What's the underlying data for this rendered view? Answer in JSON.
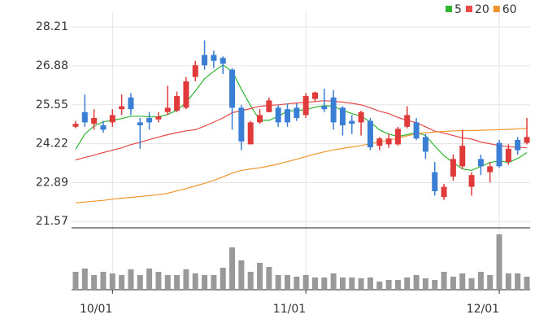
{
  "chart_data": {
    "type": "candlestick",
    "categories": [
      null,
      null,
      null,
      null,
      "10/01",
      null,
      null,
      null,
      null,
      null,
      null,
      null,
      null,
      null,
      null,
      null,
      null,
      null,
      null,
      null,
      null,
      null,
      null,
      null,
      null,
      "11/01",
      null,
      null,
      null,
      null,
      null,
      null,
      null,
      null,
      null,
      null,
      null,
      null,
      null,
      null,
      null,
      null,
      null,
      null,
      null,
      null,
      "12/01",
      null,
      null,
      null
    ],
    "open": [
      24.8,
      25.3,
      24.9,
      24.85,
      24.95,
      25.4,
      25.8,
      24.95,
      25.1,
      25.05,
      25.3,
      25.35,
      25.45,
      26.5,
      27.25,
      27.25,
      27.15,
      26.75,
      25.45,
      24.2,
      24.95,
      25.3,
      25.45,
      25.4,
      25.45,
      25.2,
      25.75,
      25.5,
      25.8,
      25.45,
      25.0,
      24.95,
      25.0,
      24.15,
      24.2,
      24.2,
      24.8,
      24.95,
      24.45,
      23.25,
      22.4,
      23.1,
      23.45,
      22.75,
      23.7,
      23.25,
      24.25,
      23.6,
      24.35,
      24.25
    ],
    "high": [
      25.0,
      25.9,
      25.4,
      25.0,
      25.4,
      25.9,
      25.95,
      25.1,
      25.3,
      25.3,
      26.2,
      26.0,
      26.5,
      27.05,
      27.75,
      27.4,
      27.2,
      26.8,
      25.55,
      25.0,
      25.4,
      25.8,
      25.55,
      25.6,
      25.6,
      25.95,
      26.0,
      26.1,
      26.05,
      25.5,
      25.2,
      25.35,
      25.1,
      24.45,
      24.55,
      24.8,
      25.5,
      25.1,
      24.55,
      23.6,
      22.85,
      23.85,
      24.7,
      23.25,
      23.85,
      23.6,
      24.35,
      24.2,
      24.45,
      25.1
    ],
    "low": [
      24.75,
      24.8,
      24.7,
      24.6,
      24.8,
      25.2,
      25.2,
      24.05,
      24.7,
      24.95,
      25.2,
      25.3,
      25.4,
      26.35,
      26.75,
      26.8,
      26.6,
      24.7,
      24.0,
      24.2,
      24.9,
      25.3,
      24.8,
      24.8,
      25.0,
      25.1,
      25.65,
      25.3,
      24.7,
      24.5,
      24.55,
      24.5,
      24.0,
      24.0,
      24.08,
      24.15,
      24.75,
      24.35,
      23.7,
      22.45,
      22.3,
      22.96,
      23.35,
      22.45,
      23.15,
      22.9,
      23.4,
      23.5,
      23.85,
      24.2
    ],
    "close": [
      24.9,
      24.95,
      25.1,
      24.7,
      25.2,
      25.5,
      25.4,
      24.85,
      24.95,
      25.15,
      25.45,
      25.85,
      26.35,
      26.9,
      26.9,
      27.05,
      26.95,
      25.45,
      24.3,
      24.95,
      25.2,
      25.7,
      24.95,
      24.95,
      25.1,
      25.85,
      25.97,
      25.4,
      24.95,
      24.85,
      24.9,
      25.3,
      24.1,
      24.4,
      24.4,
      24.73,
      25.2,
      24.4,
      23.95,
      22.6,
      22.75,
      23.7,
      24.15,
      23.15,
      23.45,
      23.45,
      23.45,
      24.05,
      24.0,
      24.45
    ],
    "up_color": "#e03a3a",
    "down_color": "#3a7fd5",
    "ylim": [
      21.35,
      28.71
    ],
    "yticks": [
      28.21,
      26.88,
      25.55,
      24.22,
      22.89,
      21.57
    ],
    "grid": true,
    "legend_position": "top-right",
    "series": [
      {
        "name": "5",
        "color": "#2fb52f",
        "values": [
          24.03,
          24.55,
          24.83,
          24.97,
          25.02,
          25.08,
          25.16,
          25.16,
          25.14,
          25.14,
          25.22,
          25.36,
          25.63,
          26.02,
          26.44,
          26.69,
          26.91,
          26.69,
          26.08,
          25.52,
          25.02,
          25.02,
          25.16,
          25.33,
          25.36,
          25.38,
          25.47,
          25.52,
          25.5,
          25.36,
          25.25,
          25.16,
          24.97,
          24.69,
          24.55,
          24.47,
          24.53,
          24.61,
          24.5,
          24.14,
          23.81,
          23.58,
          23.36,
          23.31,
          23.45,
          23.58,
          23.64,
          23.58,
          23.72,
          23.92
        ]
      },
      {
        "name": "20",
        "color": "#e84848",
        "values": [
          23.67,
          23.75,
          23.83,
          23.92,
          24.0,
          24.08,
          24.19,
          24.27,
          24.36,
          24.45,
          24.53,
          24.6,
          24.66,
          24.7,
          24.82,
          24.96,
          25.1,
          25.28,
          25.35,
          25.42,
          25.5,
          25.53,
          25.55,
          25.58,
          25.61,
          25.63,
          25.66,
          25.69,
          25.67,
          25.64,
          25.6,
          25.55,
          25.45,
          25.33,
          25.25,
          25.12,
          25.02,
          24.94,
          24.8,
          24.65,
          24.58,
          24.5,
          24.42,
          24.38,
          24.28,
          24.22,
          24.16,
          24.12,
          24.1,
          24.08
        ]
      },
      {
        "name": "60",
        "color": "#f0952e",
        "values": [
          22.2,
          22.23,
          22.26,
          22.29,
          22.33,
          22.36,
          22.39,
          22.42,
          22.45,
          22.48,
          22.53,
          22.61,
          22.69,
          22.78,
          22.87,
          22.97,
          23.09,
          23.22,
          23.31,
          23.36,
          23.4,
          23.46,
          23.53,
          23.61,
          23.69,
          23.78,
          23.87,
          23.94,
          24.01,
          24.06,
          24.11,
          24.16,
          24.22,
          24.28,
          24.34,
          24.41,
          24.49,
          24.56,
          24.6,
          24.62,
          24.64,
          24.66,
          24.67,
          24.67,
          24.68,
          24.69,
          24.7,
          24.71,
          24.73,
          24.75
        ]
      }
    ],
    "volume": {
      "color": "#999999",
      "ylim": [
        0,
        68
      ],
      "values": [
        22,
        26,
        18,
        22,
        20,
        18,
        25,
        18,
        26,
        22,
        18,
        18,
        25,
        20,
        18,
        18,
        27,
        52,
        36,
        22,
        33,
        28,
        18,
        18,
        16,
        18,
        15,
        15,
        20,
        15,
        15,
        14,
        15,
        10,
        12,
        12,
        15,
        18,
        14,
        12,
        22,
        16,
        20,
        14,
        22,
        18,
        68,
        20,
        20,
        16
      ]
    }
  }
}
